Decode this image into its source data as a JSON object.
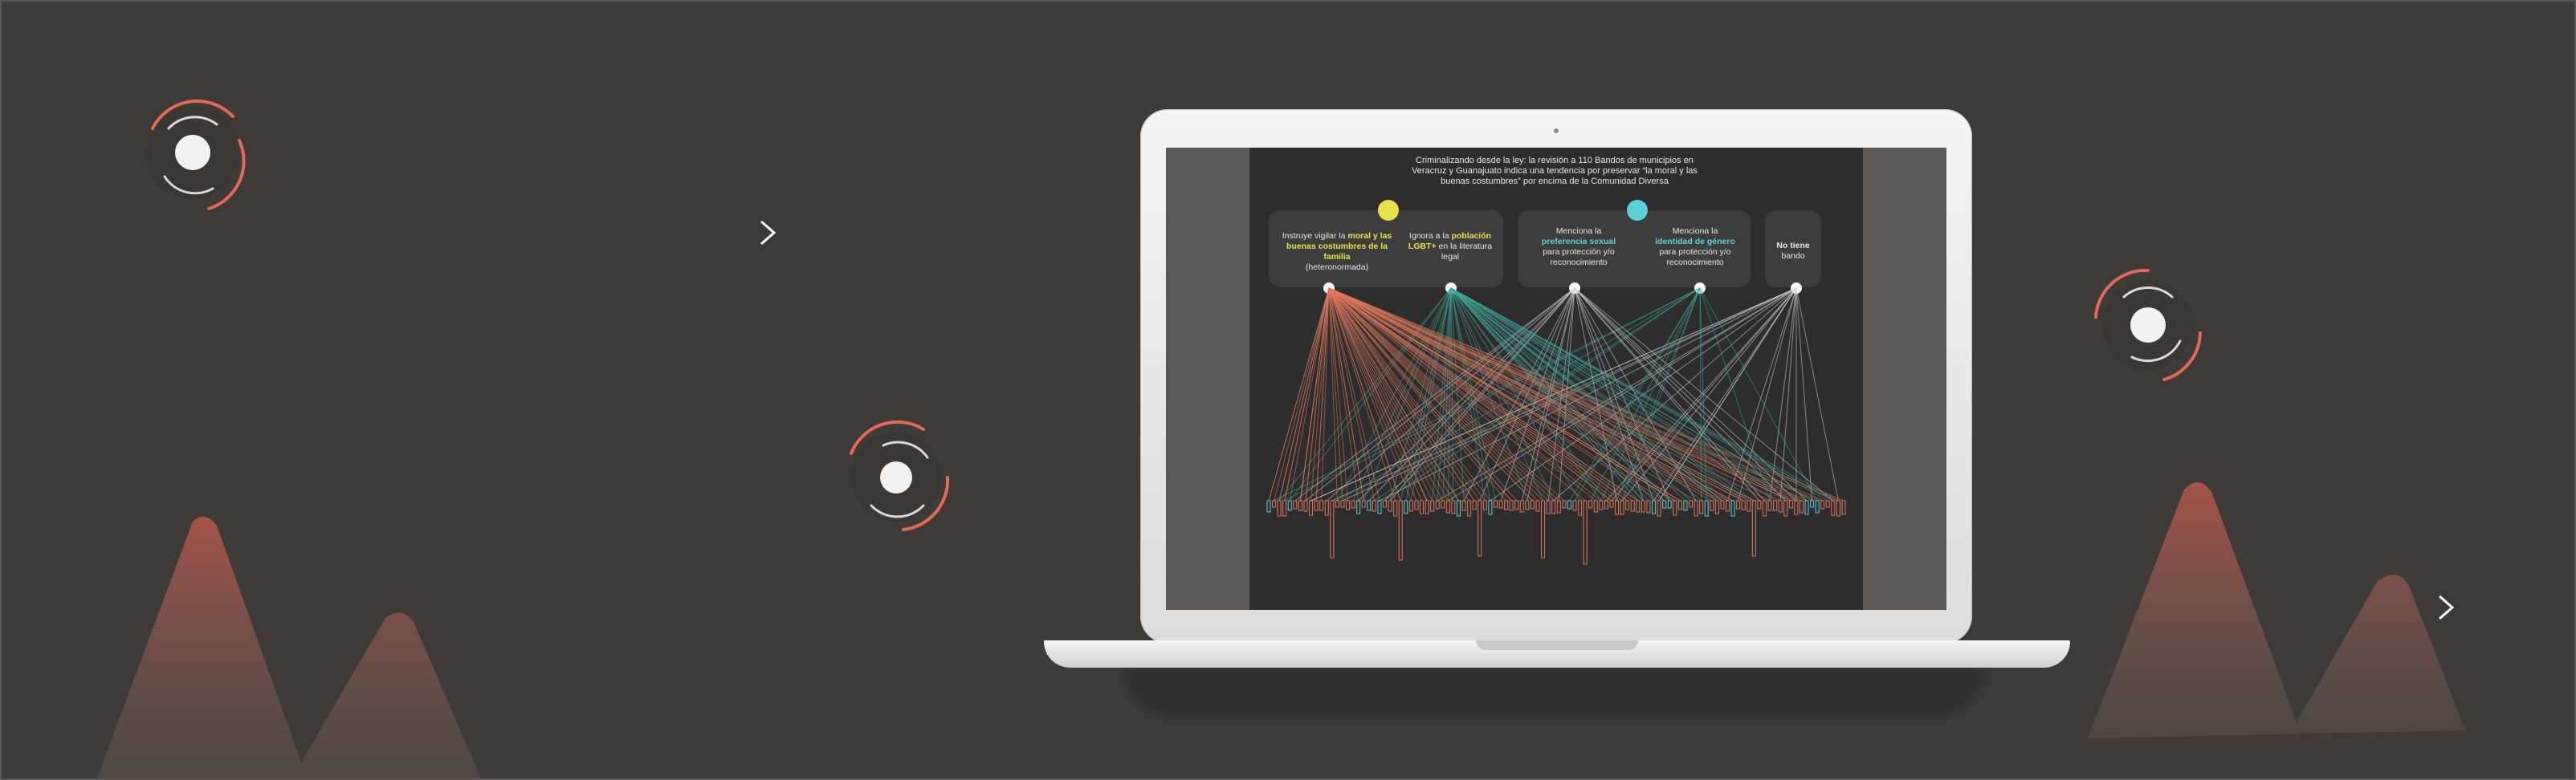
{
  "infographic": {
    "title_line1": "Criminalizando desde la ley: la revisión a 110 Bandos de municipios en",
    "title_line2": "Veracruz y Guanajuato indica una tendencia por preservar “la moral y las",
    "title_line3": "buenas costumbres” por encima de la Comunidad Diversa",
    "categories": [
      {
        "pre": "Instruye vigilar la ",
        "highlight": "moral y las buenas costumbres de la familia",
        "post": "(heteronormada)"
      },
      {
        "pre": "Ignora a la ",
        "highlight": "población LGBT+",
        "post": " en la literatura legal"
      },
      {
        "pre": "Menciona la ",
        "highlight": "preferencia sexual",
        "post": "para protección y/o reconocimiento"
      },
      {
        "pre": "Menciona la ",
        "highlight": "identidad de género",
        "post": "para protección y/o reconocimiento"
      },
      {
        "pre": "",
        "highlight": "No tiene",
        "post": "bando"
      }
    ]
  },
  "colors": {
    "background": "#3d3a38",
    "accent_red": "#e07a5f",
    "accent_teal": "#3fa89a",
    "highlight_yellow": "#e7e24a",
    "highlight_cyan": "#5bd0d6"
  },
  "icons": {
    "spinner": "ring-spinner-icon",
    "arrow": "arrow-right-icon",
    "badge_yellow": "document-icon",
    "badge_cyan": "document-icon"
  }
}
